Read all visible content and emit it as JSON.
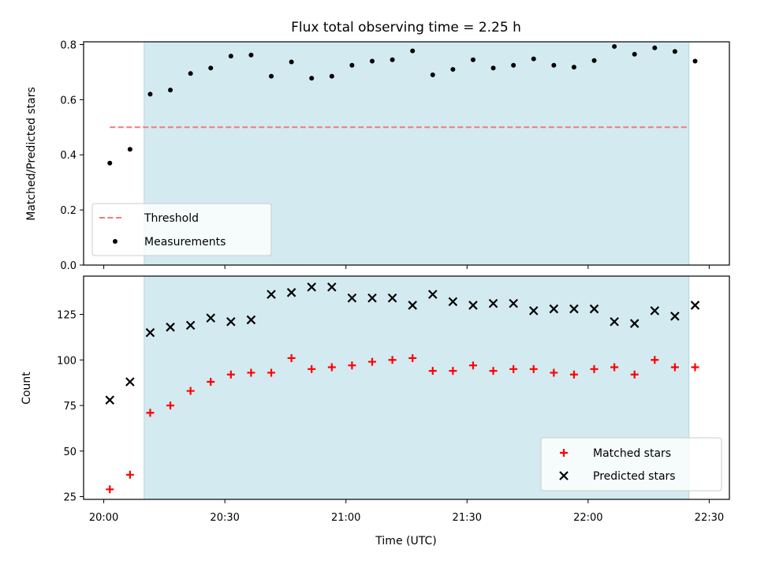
{
  "chart_data": [
    {
      "type": "scatter",
      "title": "Flux total observing time = 2.25 h",
      "xlabel": "",
      "ylabel": "Matched/Predicted stars",
      "ylim": [
        0,
        0.81
      ],
      "yticks": [
        "0.0",
        "0.2",
        "0.4",
        "0.6",
        "0.8"
      ],
      "xlim_minutes": [
        -5,
        155
      ],
      "xticks_minutes": [
        0,
        30,
        60,
        90,
        120,
        150
      ],
      "highlight_span_minutes": [
        10,
        145
      ],
      "highlight_color": "#d3eaf0",
      "threshold": {
        "name": "Threshold",
        "y": 0.5,
        "x_range_minutes": [
          1.5,
          145
        ],
        "color": "#f47a7a"
      },
      "series": [
        {
          "name": "Measurements",
          "color": "#000000",
          "x_minutes": [
            1.5,
            6.5,
            11.5,
            16.5,
            21.5,
            26.5,
            31.5,
            36.5,
            41.5,
            46.5,
            51.5,
            56.5,
            61.5,
            66.5,
            71.5,
            76.5,
            81.5,
            86.5,
            91.5,
            96.5,
            101.5,
            106.5,
            111.5,
            116.5,
            121.5,
            126.5,
            131.5,
            136.5,
            141.5,
            146.5
          ],
          "values": [
            0.37,
            0.42,
            0.62,
            0.635,
            0.695,
            0.715,
            0.758,
            0.762,
            0.685,
            0.737,
            0.678,
            0.685,
            0.725,
            0.74,
            0.745,
            0.777,
            0.69,
            0.71,
            0.745,
            0.715,
            0.725,
            0.748,
            0.725,
            0.718,
            0.742,
            0.793,
            0.765,
            0.788,
            0.775,
            0.74
          ]
        }
      ],
      "legend_position": "lower-left"
    },
    {
      "type": "scatter",
      "title": "",
      "xlabel": "Time (UTC)",
      "ylabel": "Count",
      "ylim": [
        23.5,
        146
      ],
      "yticks": [
        "25",
        "50",
        "75",
        "100",
        "125"
      ],
      "xlim_minutes": [
        -5,
        155
      ],
      "xticks": [
        "20:00",
        "20:30",
        "21:00",
        "21:30",
        "22:00",
        "22:30"
      ],
      "xticks_minutes": [
        0,
        30,
        60,
        90,
        120,
        150
      ],
      "highlight_span_minutes": [
        10,
        145
      ],
      "highlight_color": "#d3eaf0",
      "series": [
        {
          "name": "Matched stars",
          "marker": "plus",
          "color": "#ff0000",
          "x_minutes": [
            1.5,
            6.5,
            11.5,
            16.5,
            21.5,
            26.5,
            31.5,
            36.5,
            41.5,
            46.5,
            51.5,
            56.5,
            61.5,
            66.5,
            71.5,
            76.5,
            81.5,
            86.5,
            91.5,
            96.5,
            101.5,
            106.5,
            111.5,
            116.5,
            121.5,
            126.5,
            131.5,
            136.5,
            141.5,
            146.5
          ],
          "values": [
            29,
            37,
            71,
            75,
            83,
            88,
            92,
            93,
            93,
            101,
            95,
            96,
            97,
            99,
            100,
            101,
            94,
            94,
            97,
            94,
            95,
            95,
            93,
            92,
            95,
            96,
            92,
            100,
            96,
            96
          ]
        },
        {
          "name": "Predicted stars",
          "marker": "x",
          "color": "#000000",
          "x_minutes": [
            1.5,
            6.5,
            11.5,
            16.5,
            21.5,
            26.5,
            31.5,
            36.5,
            41.5,
            46.5,
            51.5,
            56.5,
            61.5,
            66.5,
            71.5,
            76.5,
            81.5,
            86.5,
            91.5,
            96.5,
            101.5,
            106.5,
            111.5,
            116.5,
            121.5,
            126.5,
            131.5,
            136.5,
            141.5,
            146.5
          ],
          "values": [
            78,
            88,
            115,
            118,
            119,
            123,
            121,
            122,
            136,
            137,
            140,
            140,
            134,
            134,
            134,
            130,
            136,
            132,
            130,
            131,
            131,
            127,
            128,
            128,
            128,
            121,
            120,
            127,
            124,
            130
          ]
        }
      ],
      "legend_position": "lower-right"
    }
  ]
}
